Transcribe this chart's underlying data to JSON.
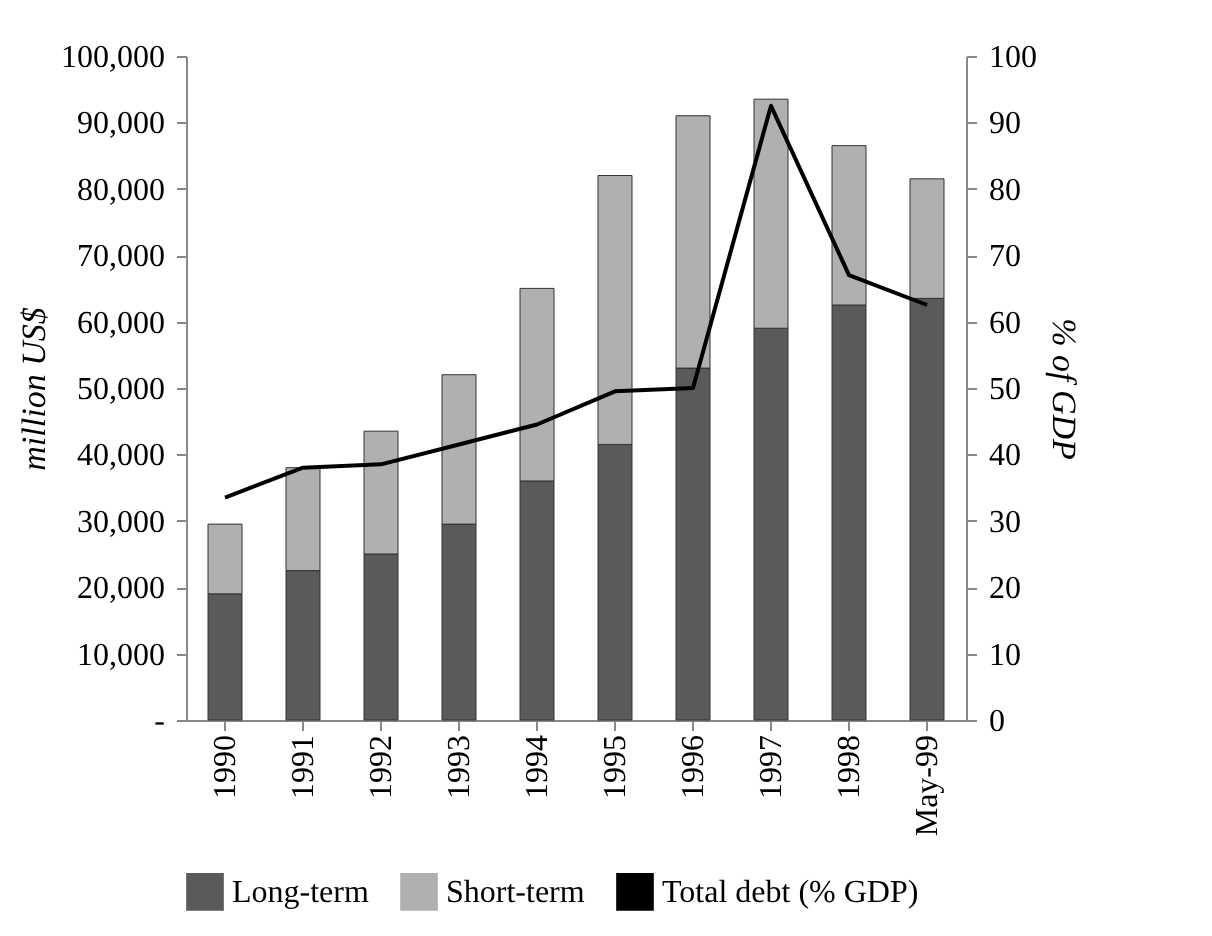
{
  "chart_data": {
    "type": "bar",
    "stacked": true,
    "ylabel": "million US$",
    "y2label": "% of GDP",
    "categories": [
      "1990",
      "1991",
      "1992",
      "1993",
      "1994",
      "1995",
      "1996",
      "1997",
      "1998",
      "May-99"
    ],
    "series": [
      {
        "name": "Long-term",
        "color": "#5a5a5a",
        "values": [
          19000,
          22500,
          25000,
          29500,
          36000,
          41500,
          53000,
          59000,
          62500,
          63500
        ]
      },
      {
        "name": "Short-term",
        "color": "#b0b0b0",
        "values": [
          10500,
          15500,
          18500,
          22500,
          29000,
          40500,
          38000,
          34500,
          24000,
          18000
        ]
      },
      {
        "name": "Total debt (% GDP)",
        "type": "line",
        "axis": "y2",
        "color": "#000000",
        "values": [
          33.5,
          38,
          38.5,
          41.5,
          44.5,
          49.5,
          50,
          92.5,
          67,
          62.5
        ]
      }
    ],
    "ylim": [
      0,
      100000
    ],
    "yticks": [
      {
        "value": 0,
        "label": "-"
      },
      {
        "value": 10000,
        "label": "10,000"
      },
      {
        "value": 20000,
        "label": "20,000"
      },
      {
        "value": 30000,
        "label": "30,000"
      },
      {
        "value": 40000,
        "label": "40,000"
      },
      {
        "value": 50000,
        "label": "50,000"
      },
      {
        "value": 60000,
        "label": "60,000"
      },
      {
        "value": 70000,
        "label": "70,000"
      },
      {
        "value": 80000,
        "label": "80,000"
      },
      {
        "value": 90000,
        "label": "90,000"
      },
      {
        "value": 100000,
        "label": "100,000"
      }
    ],
    "y2lim": [
      0,
      100
    ],
    "y2ticks": [
      0,
      10,
      20,
      30,
      40,
      50,
      60,
      70,
      80,
      90,
      100
    ],
    "legend": "bottom",
    "grid": false
  }
}
